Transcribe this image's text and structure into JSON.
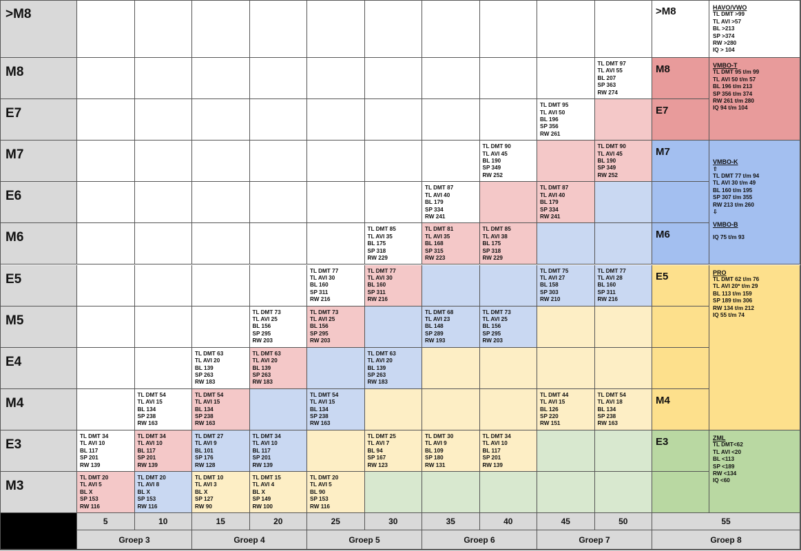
{
  "row_labels": [
    ">M8",
    "M8",
    "E7",
    "M7",
    "E6",
    "M6",
    "E5",
    "M5",
    "E4",
    "M4",
    "E3",
    "M3"
  ],
  "colors": {
    "white": "#ffffff",
    "pink": "#f4c8c8",
    "blue": "#c9d8f2",
    "yellow": "#fdeec5",
    "green": "#d8e8cf",
    "side_red": "#e89b9b",
    "side_blue": "#a3bff0",
    "side_yellow": "#fde08c",
    "side_green": "#b9d8a2",
    "grey": "#d9d9d9"
  },
  "cells": [
    {
      "row": 1,
      "col": 9,
      "fill": "white",
      "lines": [
        "TL DMT 97",
        "TL AVI 55",
        "BL 207",
        "SP 363",
        "RW 274"
      ]
    },
    {
      "row": 2,
      "col": 8,
      "fill": "white",
      "lines": [
        "TL DMT 95",
        "TL AVI 50",
        "BL 196",
        "SP 356",
        "RW 261"
      ]
    },
    {
      "row": 2,
      "col": 9,
      "fill": "pink",
      "lines": []
    },
    {
      "row": 3,
      "col": 7,
      "fill": "white",
      "lines": [
        "TL DMT 90",
        "TL AVI 45",
        "BL 190",
        "SP 349",
        "RW 252"
      ]
    },
    {
      "row": 3,
      "col": 8,
      "fill": "pink",
      "lines": []
    },
    {
      "row": 3,
      "col": 9,
      "fill": "pink",
      "lines": [
        "TL DMT 90",
        "TL AVI 45",
        "BL 190",
        "SP 349",
        "RW 252"
      ]
    },
    {
      "row": 4,
      "col": 6,
      "fill": "white",
      "lines": [
        "TL DMT 87",
        "TL AVI 40",
        "BL 179",
        "SP 334",
        "RW 241"
      ]
    },
    {
      "row": 4,
      "col": 7,
      "fill": "pink",
      "lines": []
    },
    {
      "row": 4,
      "col": 8,
      "fill": "pink",
      "lines": [
        "TL DMT 87",
        "TL AVI 40",
        "BL 179",
        "SP 334",
        "RW 241"
      ]
    },
    {
      "row": 4,
      "col": 9,
      "fill": "blue",
      "lines": []
    },
    {
      "row": 5,
      "col": 5,
      "fill": "white",
      "lines": [
        "TL DMT 85",
        "TL AVI 35",
        "BL 175",
        "SP 318",
        "RW 229"
      ]
    },
    {
      "row": 5,
      "col": 6,
      "fill": "pink",
      "lines": [
        "TL DMT 81",
        "TL AVI 35",
        "BL 168",
        "SP 315",
        "RW 223"
      ]
    },
    {
      "row": 5,
      "col": 7,
      "fill": "pink",
      "lines": [
        "TL DMT 85",
        "TL AVI 38",
        "BL 175",
        "SP 318",
        "RW 229"
      ]
    },
    {
      "row": 5,
      "col": 8,
      "fill": "blue",
      "lines": []
    },
    {
      "row": 5,
      "col": 9,
      "fill": "blue",
      "lines": []
    },
    {
      "row": 6,
      "col": 4,
      "fill": "white",
      "lines": [
        "TL DMT 77",
        "TL AVI 30",
        "BL 160",
        "SP 311",
        "RW 216"
      ]
    },
    {
      "row": 6,
      "col": 5,
      "fill": "pink",
      "lines": [
        "TL DMT 77",
        "TL AVI 30",
        "BL 160",
        "SP 311",
        "RW 216"
      ]
    },
    {
      "row": 6,
      "col": 6,
      "fill": "blue",
      "lines": []
    },
    {
      "row": 6,
      "col": 7,
      "fill": "blue",
      "lines": []
    },
    {
      "row": 6,
      "col": 8,
      "fill": "blue",
      "lines": [
        "TL DMT 75",
        "TL AVI 27",
        "BL 158",
        "SP 303",
        "RW 210"
      ]
    },
    {
      "row": 6,
      "col": 9,
      "fill": "blue",
      "lines": [
        "TL DMT 77",
        "TL AVI 28",
        "BL 160",
        "SP 311",
        "RW 216"
      ]
    },
    {
      "row": 7,
      "col": 3,
      "fill": "white",
      "lines": [
        "TL DMT 73",
        "TL AVI 25",
        "BL 156",
        "SP 295",
        "RW 203"
      ]
    },
    {
      "row": 7,
      "col": 4,
      "fill": "pink",
      "lines": [
        "TL DMT 73",
        "TL AVI 25",
        "BL 156",
        "SP 295",
        "RW 203"
      ]
    },
    {
      "row": 7,
      "col": 5,
      "fill": "blue",
      "lines": []
    },
    {
      "row": 7,
      "col": 6,
      "fill": "blue",
      "lines": [
        "TL DMT 68",
        "TL AVI 23",
        "BL 148",
        "SP 289",
        "RW 193"
      ]
    },
    {
      "row": 7,
      "col": 7,
      "fill": "blue",
      "lines": [
        "TL DMT 73",
        "TL AVI 25",
        "BL 156",
        "SP 295",
        "RW 203"
      ]
    },
    {
      "row": 7,
      "col": 8,
      "fill": "yellow",
      "lines": []
    },
    {
      "row": 7,
      "col": 9,
      "fill": "yellow",
      "lines": []
    },
    {
      "row": 8,
      "col": 2,
      "fill": "white",
      "lines": [
        "TL DMT 63",
        "TL AVI 20",
        "BL 139",
        "SP 263",
        "RW 183"
      ]
    },
    {
      "row": 8,
      "col": 3,
      "fill": "pink",
      "lines": [
        "TL DMT 63",
        "TL AVI 20",
        "BL 139",
        "SP 263",
        "RW 183"
      ]
    },
    {
      "row": 8,
      "col": 4,
      "fill": "blue",
      "lines": []
    },
    {
      "row": 8,
      "col": 5,
      "fill": "blue",
      "lines": [
        "TL DMT 63",
        "TL AVI 20",
        "BL 139",
        "SP 263",
        "RW 183"
      ]
    },
    {
      "row": 8,
      "col": 6,
      "fill": "yellow",
      "lines": []
    },
    {
      "row": 8,
      "col": 7,
      "fill": "yellow",
      "lines": []
    },
    {
      "row": 8,
      "col": 8,
      "fill": "yellow",
      "lines": []
    },
    {
      "row": 8,
      "col": 9,
      "fill": "yellow",
      "lines": []
    },
    {
      "row": 9,
      "col": 1,
      "fill": "white",
      "lines": [
        "TL DMT 54",
        "TL AVI 15",
        "BL 134",
        "SP 238",
        "RW 163"
      ]
    },
    {
      "row": 9,
      "col": 2,
      "fill": "pink",
      "lines": [
        "TL DMT 54",
        "TL AVI 15",
        "BL 134",
        "SP 238",
        "RW 163"
      ]
    },
    {
      "row": 9,
      "col": 3,
      "fill": "blue",
      "lines": []
    },
    {
      "row": 9,
      "col": 4,
      "fill": "blue",
      "lines": [
        "TL DMT 54",
        "TL AVI 15",
        "BL 134",
        "SP 238",
        "RW 163"
      ]
    },
    {
      "row": 9,
      "col": 5,
      "fill": "yellow",
      "lines": []
    },
    {
      "row": 9,
      "col": 6,
      "fill": "yellow",
      "lines": []
    },
    {
      "row": 9,
      "col": 7,
      "fill": "yellow",
      "lines": []
    },
    {
      "row": 9,
      "col": 8,
      "fill": "yellow",
      "lines": [
        "TL DMT 44",
        "TL AVI 15",
        "BL 126",
        "SP 220",
        "RW 151"
      ]
    },
    {
      "row": 9,
      "col": 9,
      "fill": "yellow",
      "lines": [
        "TL DMT 54",
        "TL AVI 18",
        "BL 134",
        "SP 238",
        "RW 163"
      ]
    },
    {
      "row": 10,
      "col": 0,
      "fill": "white",
      "lines": [
        "TL DMT 34",
        "TL AVI 10",
        "BL 117",
        "SP 201",
        "RW 139"
      ]
    },
    {
      "row": 10,
      "col": 1,
      "fill": "pink",
      "lines": [
        "TL DMT 34",
        "TL AVI 10",
        "BL 117",
        "SP 201",
        "RW 139"
      ]
    },
    {
      "row": 10,
      "col": 2,
      "fill": "blue",
      "lines": [
        "TL DMT 27",
        "TL AVI 9",
        "BL 101",
        "SP 176",
        "RW 128"
      ]
    },
    {
      "row": 10,
      "col": 3,
      "fill": "blue",
      "lines": [
        "TL DMT 34",
        "TL AVI 10",
        "BL 117",
        "SP 201",
        "RW 139"
      ]
    },
    {
      "row": 10,
      "col": 4,
      "fill": "yellow",
      "lines": []
    },
    {
      "row": 10,
      "col": 5,
      "fill": "yellow",
      "lines": [
        "TL DMT 25",
        "TL AVI 7",
        "BL 94",
        "SP 167",
        "RW 123"
      ]
    },
    {
      "row": 10,
      "col": 6,
      "fill": "yellow",
      "lines": [
        "TL DMT 30",
        "TL AVI 9",
        "BL 109",
        "SP 180",
        "RW 131"
      ]
    },
    {
      "row": 10,
      "col": 7,
      "fill": "yellow",
      "lines": [
        "TL DMT 34",
        "TL AVI 10",
        "BL 117",
        "SP 201",
        "RW 139"
      ]
    },
    {
      "row": 10,
      "col": 8,
      "fill": "green",
      "lines": []
    },
    {
      "row": 10,
      "col": 9,
      "fill": "green",
      "lines": []
    },
    {
      "row": 11,
      "col": 0,
      "fill": "pink",
      "lines": [
        "TL DMT 20",
        "TL AVI 5",
        "BL X",
        "SP 153",
        "RW 116"
      ]
    },
    {
      "row": 11,
      "col": 1,
      "fill": "blue",
      "lines": [
        "TL DMT 20",
        "TL AVI 8",
        "BL X",
        "SP 153",
        "RW 116"
      ]
    },
    {
      "row": 11,
      "col": 2,
      "fill": "yellow",
      "lines": [
        "TL DMT 10",
        "TL AVI 3",
        "BL X",
        "SP 127",
        "RW 90"
      ]
    },
    {
      "row": 11,
      "col": 3,
      "fill": "yellow",
      "lines": [
        "TL DMT 15",
        "TL AVI 4",
        "BL X",
        "SP 149",
        "RW 100"
      ]
    },
    {
      "row": 11,
      "col": 4,
      "fill": "yellow",
      "lines": [
        "TL DMT 20",
        "TL AVI 5",
        "BL 90",
        "SP 153",
        "RW 116"
      ]
    },
    {
      "row": 11,
      "col": 5,
      "fill": "green",
      "lines": []
    },
    {
      "row": 11,
      "col": 6,
      "fill": "green",
      "lines": []
    },
    {
      "row": 11,
      "col": 7,
      "fill": "green",
      "lines": []
    },
    {
      "row": 11,
      "col": 8,
      "fill": "green",
      "lines": []
    },
    {
      "row": 11,
      "col": 9,
      "fill": "green",
      "lines": []
    }
  ],
  "level_column": [
    {
      "row": 0,
      "label": ">M8",
      "fill": "white"
    },
    {
      "row": 1,
      "label": "M8",
      "fill": "side_red"
    },
    {
      "row": 2,
      "label": "E7",
      "fill": "side_red"
    },
    {
      "row": 3,
      "label": "M7",
      "fill": "side_blue"
    },
    {
      "row": 4,
      "label": "",
      "fill": "side_blue"
    },
    {
      "row": 5,
      "label": "M6",
      "fill": "side_blue"
    },
    {
      "row": 6,
      "label": "E5",
      "fill": "side_yellow"
    },
    {
      "row": 7,
      "label": "",
      "fill": "side_yellow"
    },
    {
      "row": 8,
      "label": "",
      "fill": "side_yellow"
    },
    {
      "row": 9,
      "label": "M4",
      "fill": "side_yellow"
    },
    {
      "row": 10,
      "label": "E3",
      "fill": "side_green"
    },
    {
      "row": 11,
      "label": "",
      "fill": "side_green"
    }
  ],
  "side_blocks": [
    {
      "from": 0,
      "to": 0,
      "fill": "white",
      "title": "HAVO/VWO",
      "lines": [
        "TL DMT >99",
        "TL AVI >57",
        "BL >213",
        "SP >374",
        "RW >280",
        "IQ > 104"
      ]
    },
    {
      "from": 1,
      "to": 2,
      "fill": "side_red",
      "title": "VMBO-T",
      "lines": [
        "TL DMT 95 t/m 99",
        "TL AVI 50 t/m 57",
        "BL 196 t/m 213",
        "SP 356 t/m 374",
        "RW 261 t/m 280",
        "IQ 94 t/m 104"
      ]
    },
    {
      "from": 3,
      "to": 5,
      "fill": "side_blue",
      "title": "VMBO-K",
      "lines": [
        "⇧",
        "TL DMT 77 t/m 94",
        "TL AVI 30 t/m 49",
        "BL 160 t/m 195",
        "SP 307 t/m 355",
        "RW 213 t/m 260",
        "⇩"
      ],
      "title2": "VMBO-B",
      "lines2": [
        "IQ 75 t/m 93"
      ]
    },
    {
      "from": 6,
      "to": 9,
      "fill": "side_yellow",
      "title": "PRO",
      "lines": [
        "TL DMT 62 t/m 76",
        "TL AVI 20* t/m 29",
        "BL 113 t/m 159",
        "SP 189 t/m 306",
        "RW 134 t/m 212",
        "IQ 55 t/m 74"
      ]
    },
    {
      "from": 10,
      "to": 11,
      "fill": "side_green",
      "title": "ZML",
      "lines": [
        "TL DMT<62",
        "TL AVI <20",
        "BL <113",
        "SP <189",
        "RW <134",
        "IQ <60"
      ]
    }
  ],
  "months": [
    "5",
    "10",
    "15",
    "20",
    "25",
    "30",
    "35",
    "40",
    "45",
    "50",
    "55"
  ],
  "groups": [
    "Groep 3",
    "Groep 4",
    "Groep 5",
    "Groep 6",
    "Groep 7",
    "Groep 8"
  ]
}
